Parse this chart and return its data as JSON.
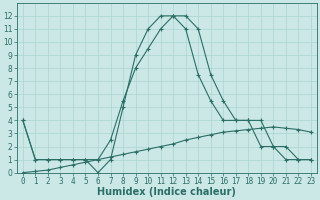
{
  "xlabel": "Humidex (Indice chaleur)",
  "ylabel": "",
  "x_values": [
    0,
    1,
    2,
    3,
    4,
    5,
    6,
    7,
    8,
    9,
    10,
    11,
    12,
    13,
    14,
    15,
    16,
    17,
    18,
    19,
    20,
    21,
    22,
    23
  ],
  "line1_y": [
    4,
    1,
    1,
    1,
    1,
    1,
    0,
    1,
    5,
    9,
    11,
    12,
    12,
    11,
    7.5,
    5.5,
    4,
    4,
    4,
    2,
    2,
    1,
    1,
    1
  ],
  "line2_y": [
    4,
    1,
    1,
    1,
    1,
    1,
    1,
    2.5,
    5.5,
    8,
    9.5,
    11,
    12,
    12,
    11,
    7.5,
    5.5,
    4,
    4,
    4,
    2,
    2,
    1,
    1
  ],
  "line3_y": [
    0,
    0.1,
    0.2,
    0.4,
    0.6,
    0.8,
    1.0,
    1.2,
    1.4,
    1.6,
    1.8,
    2.0,
    2.2,
    2.5,
    2.7,
    2.9,
    3.1,
    3.2,
    3.3,
    3.4,
    3.5,
    3.4,
    3.3,
    3.1
  ],
  "bg_color": "#cce8e6",
  "grid_color": "#aad4d0",
  "line_color": "#2a6e65",
  "ylim": [
    0,
    13
  ],
  "xlim": [
    -0.5,
    23.5
  ],
  "yticks": [
    0,
    1,
    2,
    3,
    4,
    5,
    6,
    7,
    8,
    9,
    10,
    11,
    12
  ],
  "xticks": [
    0,
    1,
    2,
    3,
    4,
    5,
    6,
    7,
    8,
    9,
    10,
    11,
    12,
    13,
    14,
    15,
    16,
    17,
    18,
    19,
    20,
    21,
    22,
    23
  ],
  "xlabel_fontsize": 7,
  "tick_fontsize": 5.5
}
